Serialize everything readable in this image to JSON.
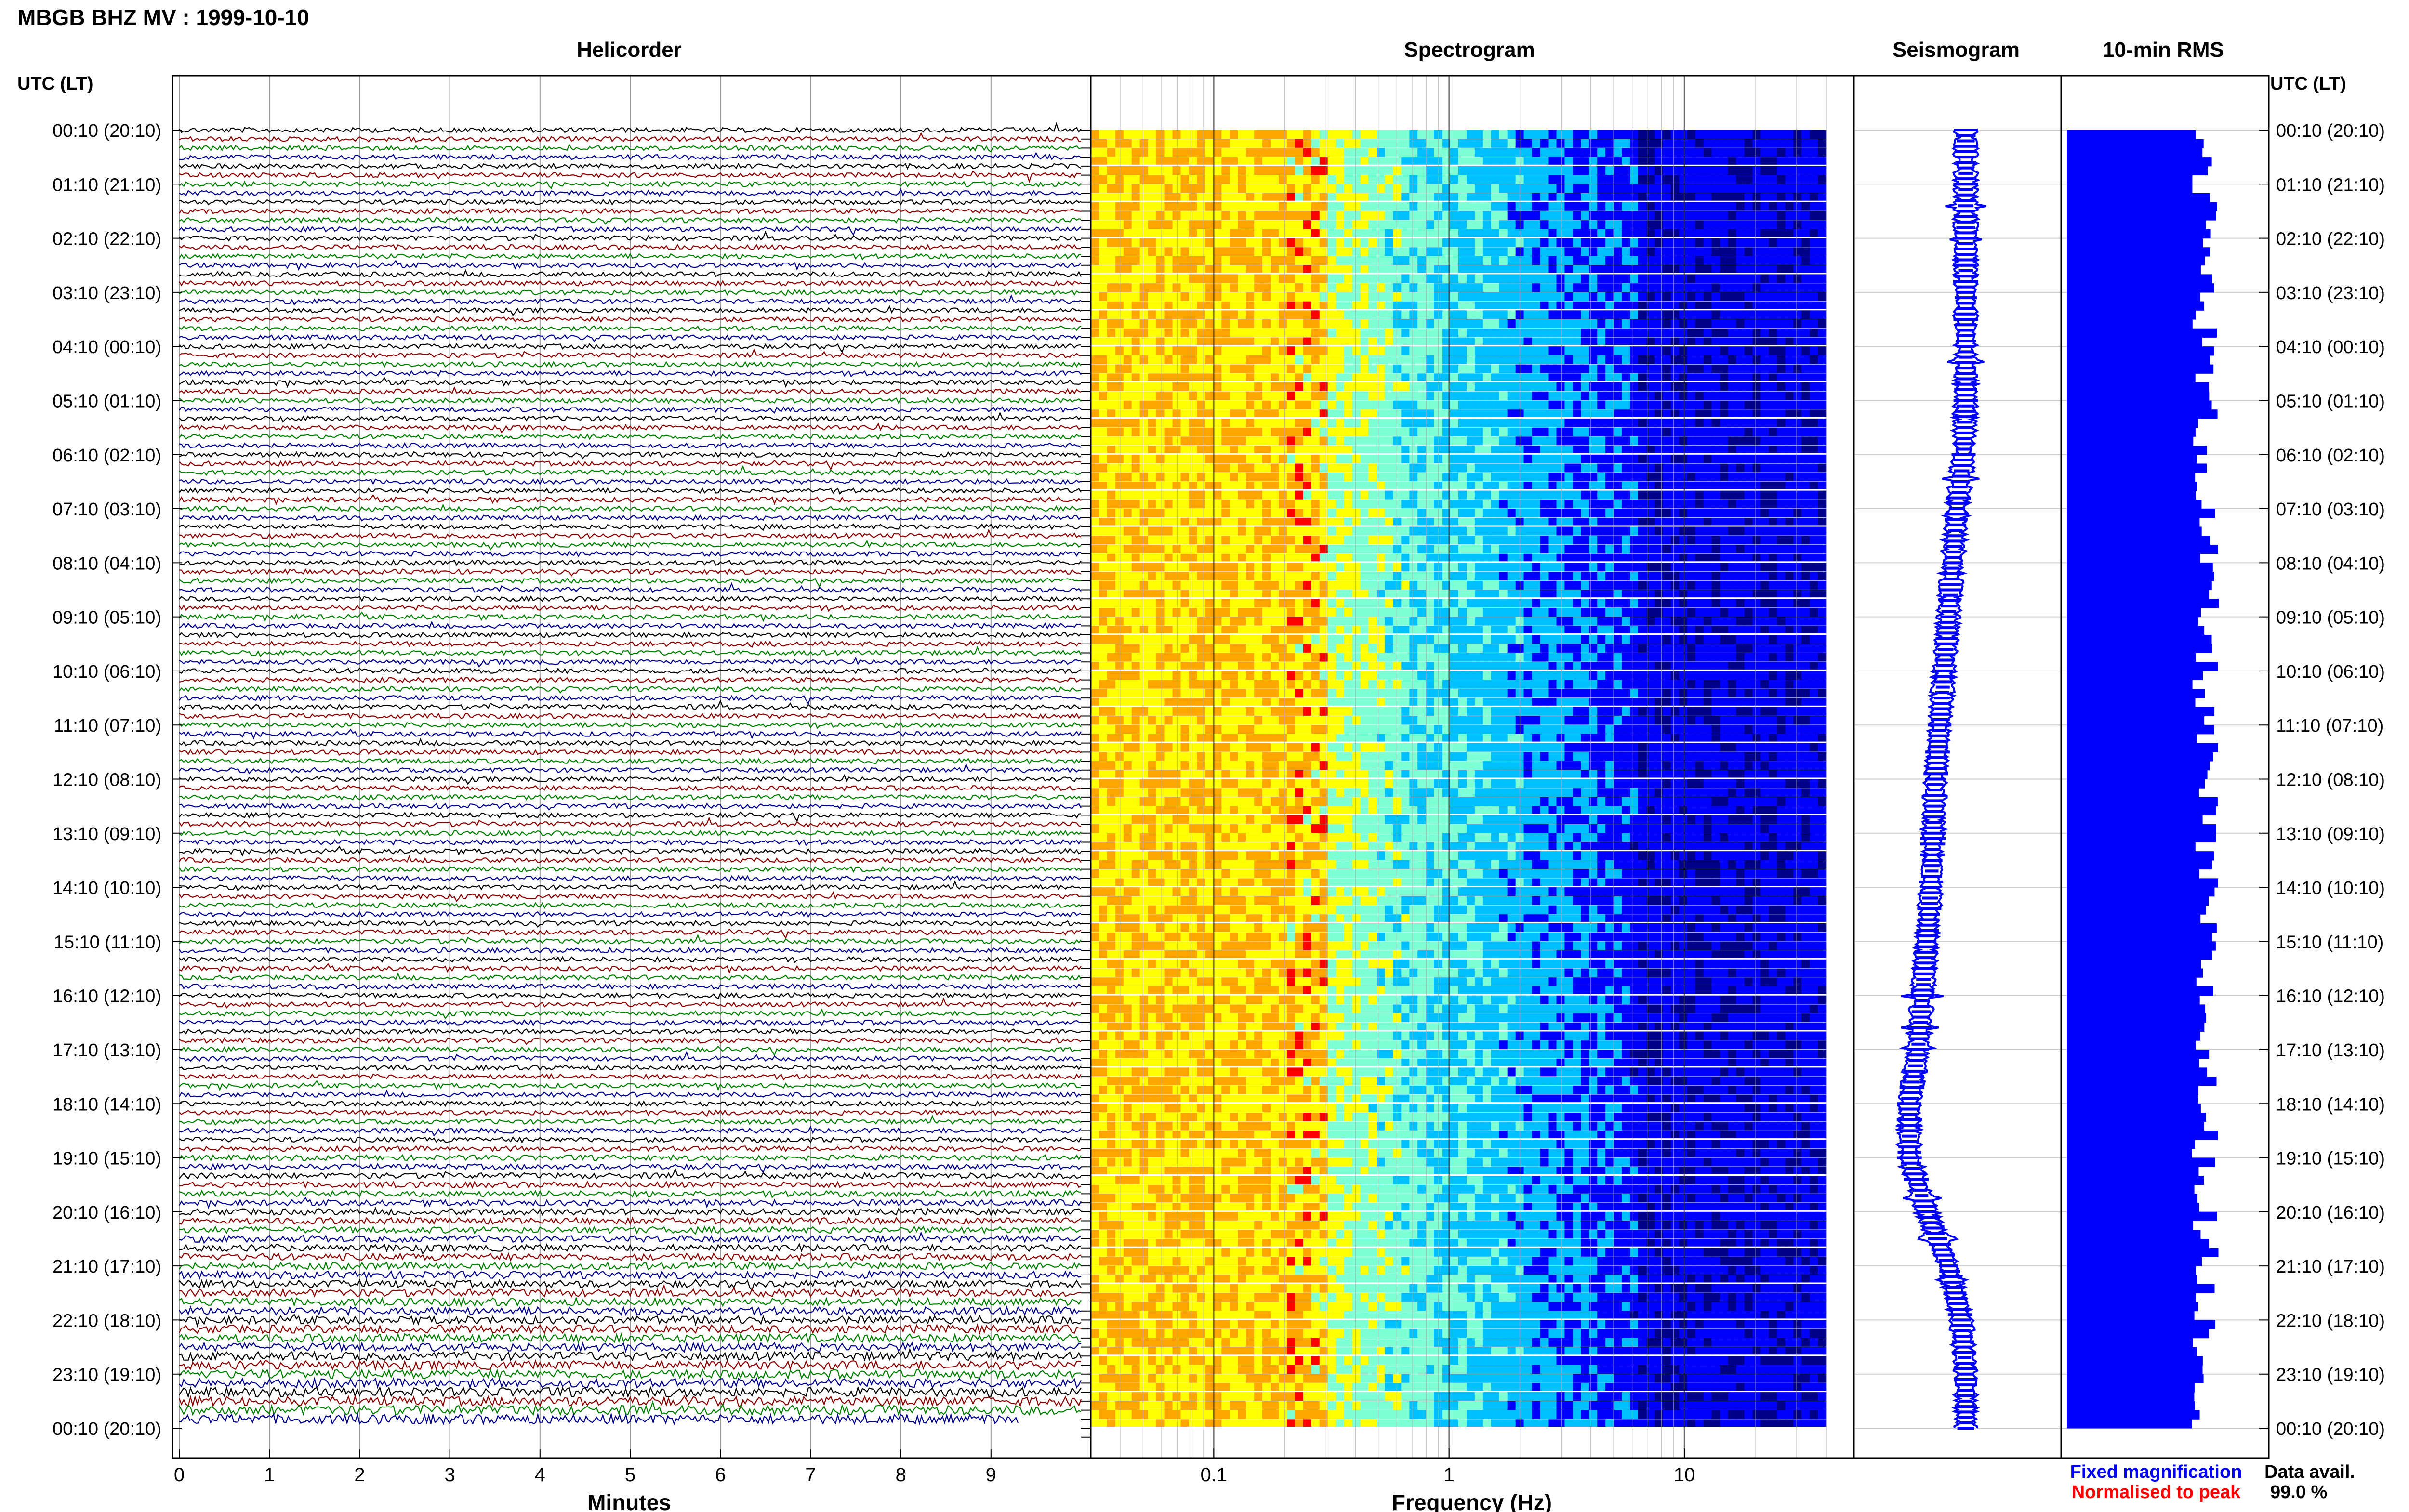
{
  "title": "MBGB BHZ MV : 1999-10-10",
  "panels": {
    "helicorder": "Helicorder",
    "spectrogram": "Spectrogram",
    "seismogram": "Seismogram",
    "rms": "10-min RMS"
  },
  "time_axis_label": "UTC (LT)",
  "legend": {
    "fixed": "Fixed magnification",
    "normalised": "Normalised to peak",
    "fixed_color": "#0000ff",
    "normalised_color": "#ff0000"
  },
  "data_avail": {
    "label": "Data avail.",
    "value": "99.0 %"
  },
  "trace_colors": [
    "#000000",
    "#8b0000",
    "#008000",
    "#00008b"
  ],
  "chart_data": [
    {
      "type": "line",
      "name": "helicorder",
      "title": "Helicorder",
      "xlabel": "Minutes",
      "xlim": [
        0,
        10
      ],
      "x_ticks": [
        0,
        1,
        2,
        3,
        4,
        5,
        6,
        7,
        8,
        9
      ],
      "x_tick_labels": [
        "0",
        "1",
        "2",
        "3",
        "4",
        "5",
        "6",
        "7",
        "8",
        "9"
      ],
      "rows_per_hour": 6,
      "row_count": 144,
      "y_tick_labels": [
        "00:10 (20:10)",
        "01:10 (21:10)",
        "02:10 (22:10)",
        "03:10 (23:10)",
        "04:10 (00:10)",
        "05:10 (01:10)",
        "06:10 (02:10)",
        "07:10 (03:10)",
        "08:10 (04:10)",
        "09:10 (05:10)",
        "10:10 (06:10)",
        "11:10 (07:10)",
        "12:10 (08:10)",
        "13:10 (09:10)",
        "14:10 (10:10)",
        "15:10 (11:10)",
        "16:10 (12:10)",
        "17:10 (13:10)",
        "18:10 (14:10)",
        "19:10 (15:10)",
        "20:10 (16:10)",
        "21:10 (17:10)",
        "22:10 (18:10)",
        "23:10 (19:10)",
        "00:10 (20:10)"
      ]
    },
    {
      "type": "heatmap",
      "name": "spectrogram",
      "title": "Spectrogram",
      "xlabel": "Frequency (Hz)",
      "x_scale": "log",
      "xlim": [
        0.03,
        40
      ],
      "x_major_ticks": [
        0.1,
        1,
        10
      ],
      "x_tick_labels": [
        "0.1",
        "1",
        "10"
      ],
      "colormap": [
        "#00008b",
        "#0000ff",
        "#00bfff",
        "#7fffd4",
        "#ffff00",
        "#ffa500",
        "#ff0000"
      ]
    },
    {
      "type": "line",
      "name": "seismogram",
      "title": "Seismogram",
      "orientation": "vertical",
      "offset_profile": [
        0,
        0,
        0,
        0,
        0,
        0,
        -0.5,
        -2,
        -3,
        -4,
        -5,
        -6,
        -7,
        -7.5,
        -8,
        -9,
        -10,
        -11,
        -13,
        -13,
        -9,
        -4,
        -1,
        0,
        0
      ]
    },
    {
      "type": "bar",
      "name": "10-min RMS",
      "title": "10-min RMS",
      "orientation": "horizontal",
      "color": "#0000ff",
      "value_range": [
        0.74,
        0.9
      ],
      "max_value": 1.0
    }
  ]
}
